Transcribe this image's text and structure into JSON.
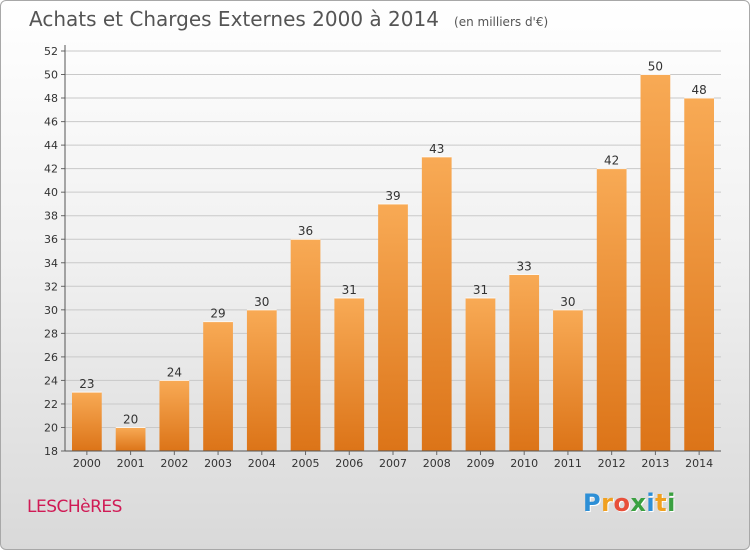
{
  "header": {
    "title": "Achats et Charges Externes 2000 à 2014",
    "unit": "(en milliers d'€)"
  },
  "footer": {
    "town": "LESCHèRES",
    "logo_letters": [
      "P",
      "r",
      "o",
      "x",
      "i",
      "t",
      "i"
    ],
    "logo_colors": [
      "#2d8fd6",
      "#f0a020",
      "#e8503a",
      "#3aa040",
      "#2d8fd6",
      "#f0a020",
      "#3aa040"
    ]
  },
  "colors": {
    "bar_light": "#f8aa55",
    "bar_dark": "#dc7418",
    "grid": "#c9c9c9",
    "town": "#d01a55"
  },
  "chart_data": {
    "type": "bar",
    "title": "Achats et Charges Externes 2000 à 2014",
    "categories": [
      "2000",
      "2001",
      "2002",
      "2003",
      "2004",
      "2005",
      "2006",
      "2007",
      "2008",
      "2009",
      "2010",
      "2011",
      "2012",
      "2013",
      "2014"
    ],
    "values": [
      23,
      20,
      24,
      29,
      30,
      36,
      31,
      39,
      43,
      31,
      33,
      30,
      42,
      50,
      48
    ],
    "data_labels": [
      "23",
      "20",
      "24",
      "29",
      "30",
      "36",
      "31",
      "39",
      "43",
      "31",
      "33",
      "30",
      "42",
      "50",
      "48"
    ],
    "ylim": [
      18,
      52
    ],
    "yticks": [
      18,
      20,
      22,
      24,
      26,
      28,
      30,
      32,
      34,
      36,
      38,
      40,
      42,
      44,
      46,
      48,
      50,
      52
    ],
    "xlabel": "",
    "ylabel": "",
    "grid": true
  }
}
